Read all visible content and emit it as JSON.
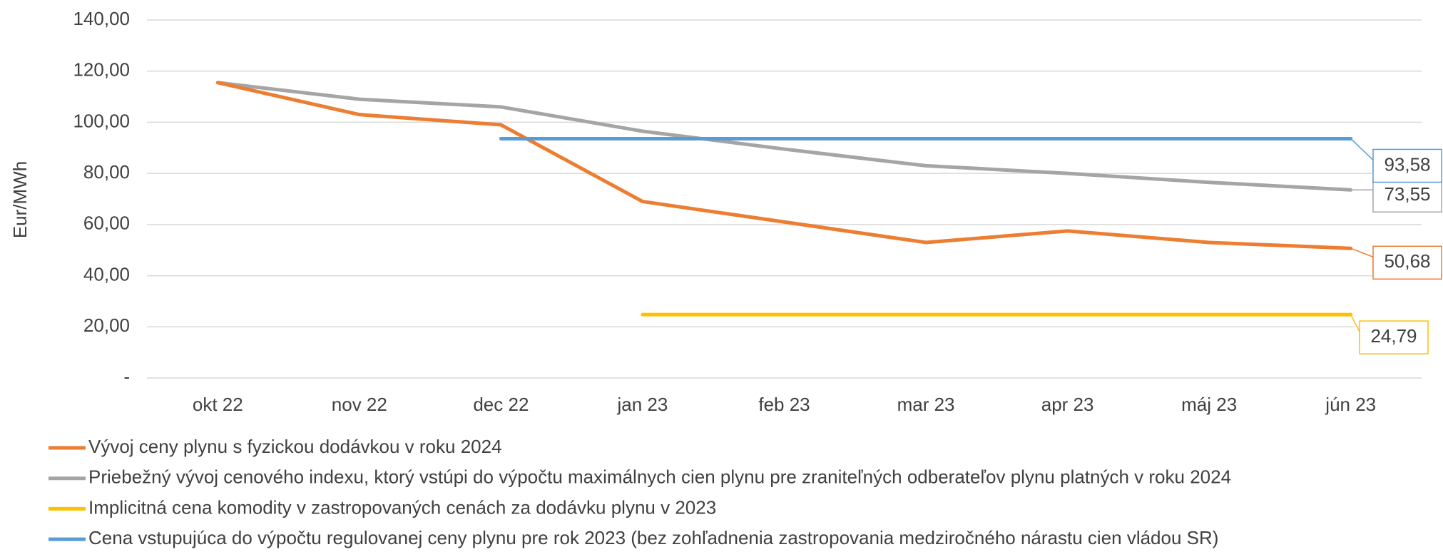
{
  "chart_data": {
    "type": "line",
    "y_label": "Eur/MWh",
    "categories": [
      "okt 22",
      "nov 22",
      "dec 22",
      "jan 23",
      "feb 23",
      "mar 23",
      "apr 23",
      "máj 23",
      "jún 23"
    ],
    "ylim": [
      0,
      140
    ],
    "yticks": [
      {
        "value": 0,
        "label": "-"
      },
      {
        "value": 20,
        "label": "20,00"
      },
      {
        "value": 40,
        "label": "40,00"
      },
      {
        "value": 60,
        "label": "60,00"
      },
      {
        "value": 80,
        "label": "80,00"
      },
      {
        "value": 100,
        "label": "100,00"
      },
      {
        "value": 120,
        "label": "120,00"
      },
      {
        "value": 140,
        "label": "140,00"
      }
    ],
    "grid": true,
    "legend": "bottom",
    "series": [
      {
        "name": "Vývoj ceny plynu s fyzickou dodávkou v roku 2024",
        "color": "#ed7d31",
        "values": [
          115.5,
          103,
          99,
          69,
          61,
          53,
          57.5,
          53,
          50.68
        ],
        "value_labels": [
          null,
          null,
          null,
          null,
          null,
          null,
          null,
          null,
          "50,68"
        ]
      },
      {
        "name": "Priebežný vývoj cenového indexu, ktorý vstúpi do výpočtu maximálnych cien plynu pre zraniteľných odberateľov plynu platných v roku 2024",
        "color": "#a5a5a5",
        "values": [
          115.5,
          109,
          106,
          96.5,
          89.5,
          83,
          80,
          76.5,
          73.55
        ],
        "value_labels": [
          null,
          null,
          null,
          null,
          null,
          null,
          null,
          null,
          "73,55"
        ]
      },
      {
        "name": "Implicitná cena komodity v zastropovaných cenách za dodávku plynu v 2023",
        "color": "#ffc000",
        "values": [
          null,
          null,
          null,
          24.79,
          24.79,
          24.79,
          24.79,
          24.79,
          24.79
        ],
        "value_labels": [
          null,
          null,
          null,
          null,
          null,
          null,
          null,
          null,
          "24,79"
        ]
      },
      {
        "name": "Cena vstupujúca do výpočtu regulovanej ceny plynu pre rok 2023 (bez zohľadnenia zastropovania medziročného nárastu cien vládou SR)",
        "color": "#5b9bd5",
        "values": [
          null,
          null,
          93.58,
          93.58,
          93.58,
          93.58,
          93.58,
          93.58,
          93.58
        ],
        "value_labels": [
          null,
          null,
          null,
          null,
          null,
          null,
          null,
          null,
          "93,58"
        ]
      }
    ]
  }
}
